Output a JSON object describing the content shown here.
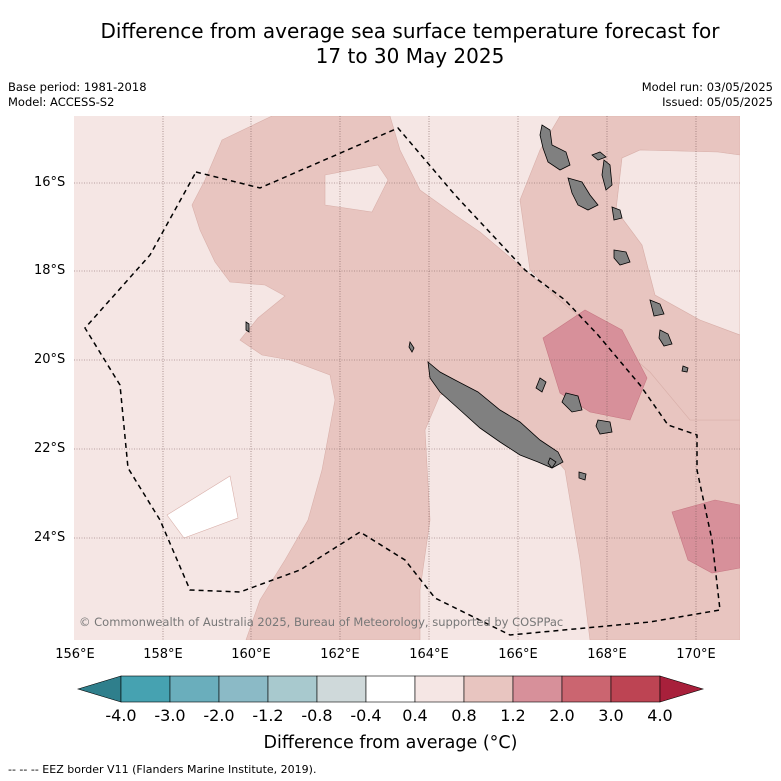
{
  "title_line1": "Difference from average sea surface temperature forecast for",
  "title_line2": "17 to 30 May 2025",
  "base_period": "Base period: 1981-2018",
  "model": "Model: ACCESS-S2",
  "model_run": "Model run: 03/05/2025",
  "issued": "Issued: 05/05/2025",
  "copyright": "© Commonwealth of Australia 2025, Bureau of Meteorology, supported by COSPPac",
  "y_ticks": [
    "16°S",
    "18°S",
    "20°S",
    "22°S",
    "24°S"
  ],
  "x_ticks": [
    "156°E",
    "158°E",
    "160°E",
    "162°E",
    "164°E",
    "166°E",
    "168°E",
    "170°E"
  ],
  "colorbar": {
    "labels": [
      "-4.0",
      "-3.0",
      "-2.0",
      "-1.2",
      "-0.8",
      "-0.4",
      "0.4",
      "0.8",
      "1.2",
      "2.0",
      "3.0",
      "4.0"
    ],
    "colors": [
      "#2f7f8c",
      "#46a2b1",
      "#6aaebc",
      "#8bbac6",
      "#a8c9ce",
      "#cfd9da",
      "#ffffff",
      "#f5e6e4",
      "#e8c5c0",
      "#d7909a",
      "#cb6570",
      "#bd4453",
      "#a8203b"
    ],
    "title": "Difference from average (°C)"
  },
  "footer": "-- -- -- EEZ border V11 (Flanders Marine Institute, 2019).",
  "colors": {
    "ocean_light": "#f5e6e4",
    "ocean_mid": "#e8c5c0",
    "ocean_warm": "#d7909a",
    "ocean_neutral": "#ffffff",
    "land": "#808080",
    "grid": "#7a5a5a"
  }
}
